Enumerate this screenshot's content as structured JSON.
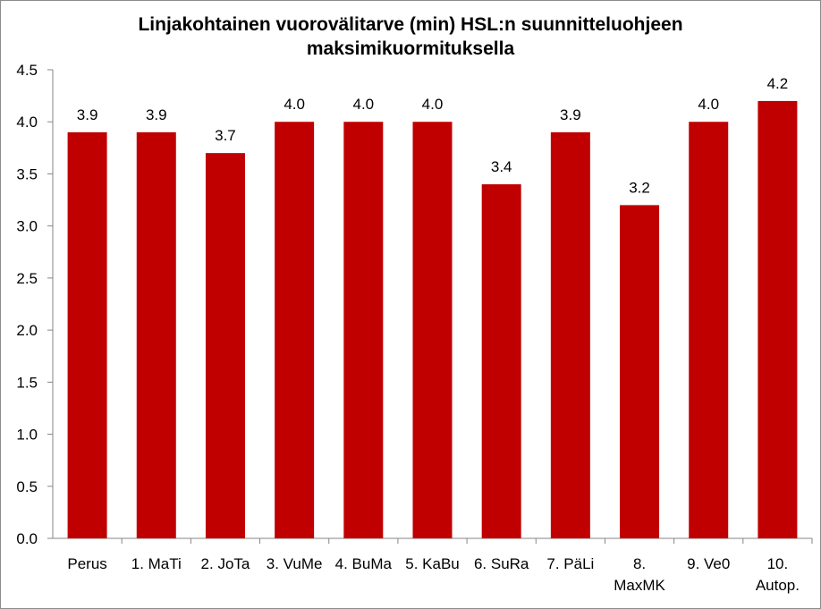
{
  "chart_data": {
    "type": "bar",
    "title_lines": [
      "Linjakohtainen vuorovälitarve (min) HSL:n suunnitteluohjeen",
      "maksimikuormituksella"
    ],
    "categories": [
      [
        "Perus"
      ],
      [
        "1. MaTi"
      ],
      [
        "2. JoTa"
      ],
      [
        "3. VuMe"
      ],
      [
        "4. BuMa"
      ],
      [
        "5. KaBu"
      ],
      [
        "6. SuRa"
      ],
      [
        "7. PäLi"
      ],
      [
        "8.",
        "MaxMK"
      ],
      [
        "9. Ve0"
      ],
      [
        "10.",
        "Autop."
      ]
    ],
    "values": [
      3.9,
      3.9,
      3.7,
      4.0,
      4.0,
      4.0,
      3.4,
      3.9,
      3.2,
      4.0,
      4.2
    ],
    "data_labels": [
      "3.9",
      "3.9",
      "3.7",
      "4.0",
      "4.0",
      "4.0",
      "3.4",
      "3.9",
      "3.2",
      "4.0",
      "4.2"
    ],
    "ylim": [
      0,
      4.5
    ],
    "yticks": [
      "0.0",
      "0.5",
      "1.0",
      "1.5",
      "2.0",
      "2.5",
      "3.0",
      "3.5",
      "4.0",
      "4.5"
    ],
    "grid": false,
    "legend": "none",
    "bar_color": "#c00000",
    "axis_color": "#868686"
  }
}
